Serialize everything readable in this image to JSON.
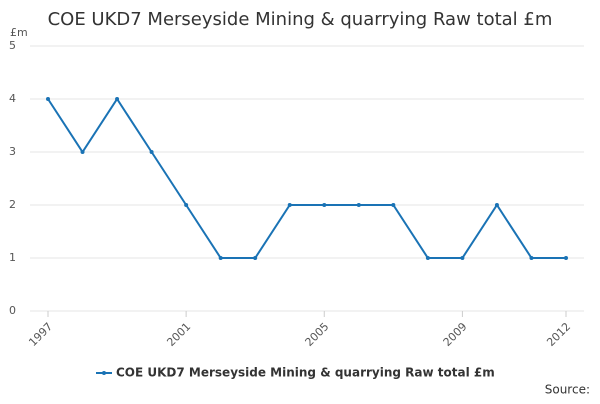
{
  "chart_data": {
    "type": "line",
    "title": "COE UKD7 Merseyside Mining & quarrying Raw total £m",
    "ylabel": "£m",
    "source": "Source:",
    "x": [
      1997,
      1998,
      1999,
      2000,
      2001,
      2002,
      2003,
      2004,
      2005,
      2006,
      2007,
      2008,
      2009,
      2010,
      2011,
      2012
    ],
    "xlim": [
      1997,
      2012
    ],
    "xticks": [
      1997,
      2001,
      2005,
      2009,
      2012
    ],
    "series": [
      {
        "name": "COE UKD7 Merseyside Mining & quarrying Raw total £m",
        "color": "#1a73b5",
        "values": [
          4,
          3,
          4,
          3,
          2,
          1,
          1,
          2,
          2,
          2,
          2,
          1,
          1,
          2,
          1,
          1
        ]
      }
    ],
    "ylim": [
      0,
      5
    ],
    "yticks": [
      0,
      1,
      2,
      3,
      4,
      5
    ],
    "grid": true,
    "legend": "bottom"
  }
}
